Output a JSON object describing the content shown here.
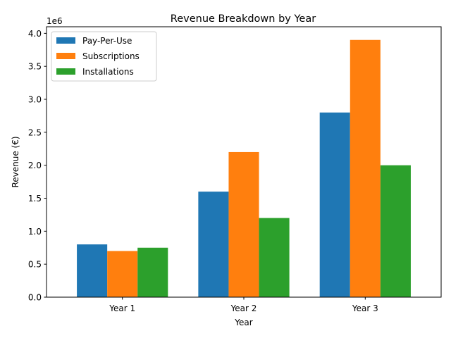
{
  "chart_data": {
    "type": "bar",
    "title": "Revenue Breakdown by Year",
    "xlabel": "Year",
    "ylabel": "Revenue (€)",
    "offset_label": "1e6",
    "categories": [
      "Year 1",
      "Year 2",
      "Year 3"
    ],
    "ylim": [
      0,
      4100000
    ],
    "yticks": [
      0,
      500000,
      1000000,
      1500000,
      2000000,
      2500000,
      3000000,
      3500000,
      4000000
    ],
    "ytick_labels": [
      "0.0",
      "0.5",
      "1.0",
      "1.5",
      "2.0",
      "2.5",
      "3.0",
      "3.5",
      "4.0"
    ],
    "grid": false,
    "legend_position": "top-left",
    "series": [
      {
        "name": "Pay-Per-Use",
        "color": "#1f77b4",
        "values": [
          800000,
          1600000,
          2800000
        ]
      },
      {
        "name": "Subscriptions",
        "color": "#ff7f0e",
        "values": [
          700000,
          2200000,
          3900000
        ]
      },
      {
        "name": "Installations",
        "color": "#2ca02c",
        "values": [
          750000,
          1200000,
          2000000
        ]
      }
    ]
  }
}
